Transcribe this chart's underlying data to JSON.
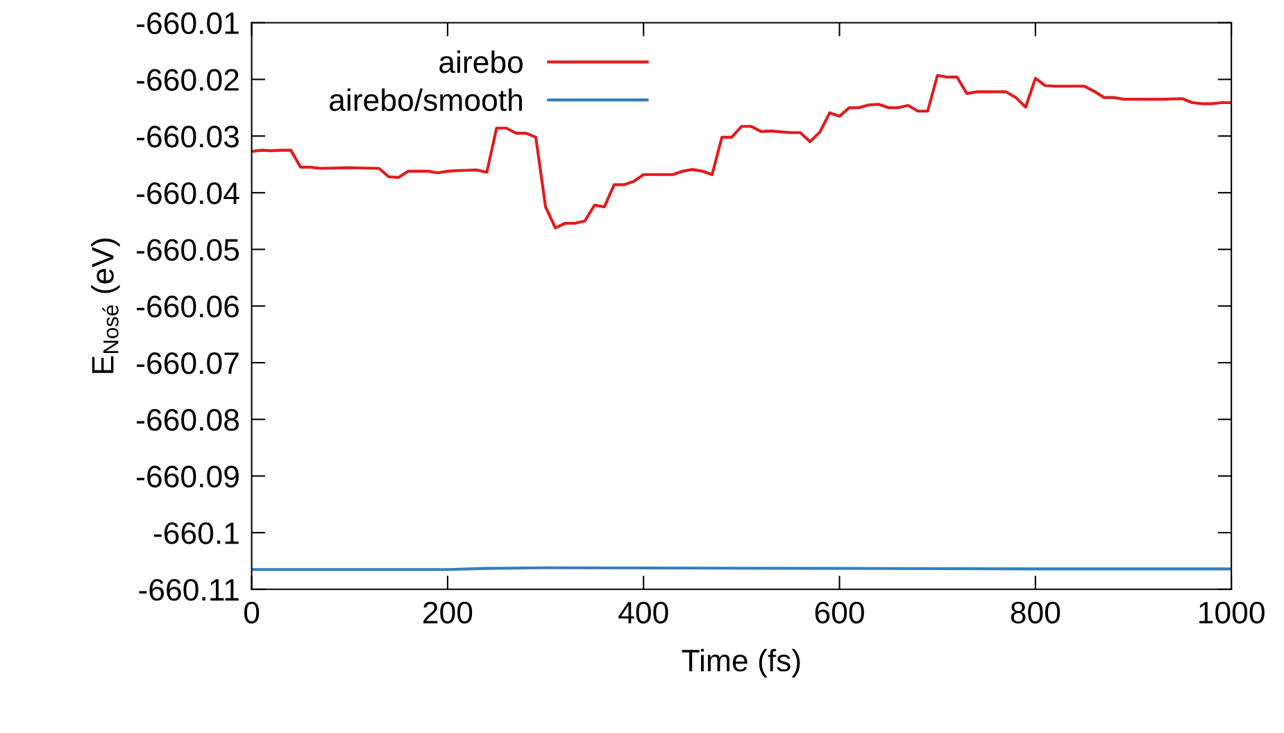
{
  "chart_data": {
    "type": "line",
    "xlabel": "Time (fs)",
    "ylabel": "E$_{Nosé}$ (eV)",
    "xlim": [
      0,
      1000
    ],
    "xticks": [
      0,
      200,
      400,
      600,
      800,
      1000
    ],
    "ylim": [
      -660.11,
      -660.01
    ],
    "yticks": [
      -660.11,
      -660.1,
      -660.09,
      -660.08,
      -660.07,
      -660.06,
      -660.05,
      -660.04,
      -660.03,
      -660.02,
      -660.01
    ],
    "grid": false,
    "legend": "top left",
    "marker": "none",
    "line_style": "solid",
    "series": [
      {
        "name": "airebo",
        "color": "#e41a1c",
        "x": [
          0,
          10,
          20,
          30,
          40,
          50,
          60,
          70,
          100,
          130,
          140,
          150,
          160,
          180,
          190,
          200,
          210,
          230,
          240,
          250,
          260,
          270,
          280,
          290,
          300,
          310,
          320,
          330,
          340,
          350,
          360,
          370,
          380,
          390,
          400,
          430,
          440,
          450,
          460,
          470,
          480,
          490,
          500,
          510,
          520,
          530,
          550,
          560,
          570,
          580,
          590,
          600,
          610,
          620,
          630,
          640,
          650,
          660,
          670,
          680,
          690,
          700,
          710,
          720,
          730,
          740,
          750,
          770,
          780,
          790,
          800,
          810,
          820,
          850,
          860,
          870,
          880,
          890,
          930,
          950,
          960,
          970,
          980,
          990,
          1000
        ],
        "values": [
          -660.0327,
          -660.0325,
          -660.0326,
          -660.0325,
          -660.0325,
          -660.0355,
          -660.0355,
          -660.0357,
          -660.0356,
          -660.0357,
          -660.0372,
          -660.0373,
          -660.0362,
          -660.0362,
          -660.0365,
          -660.0362,
          -660.0361,
          -660.036,
          -660.0364,
          -660.0286,
          -660.0286,
          -660.0295,
          -660.0295,
          -660.0302,
          -660.0425,
          -660.0462,
          -660.0454,
          -660.0454,
          -660.045,
          -660.0422,
          -660.0425,
          -660.0386,
          -660.0386,
          -660.038,
          -660.0368,
          -660.0368,
          -660.0362,
          -660.0359,
          -660.0362,
          -660.0368,
          -660.0302,
          -660.0302,
          -660.0283,
          -660.0283,
          -660.0292,
          -660.0291,
          -660.0294,
          -660.0294,
          -660.031,
          -660.0293,
          -660.0259,
          -660.0265,
          -660.025,
          -660.025,
          -660.0245,
          -660.0244,
          -660.025,
          -660.025,
          -660.0246,
          -660.0256,
          -660.0256,
          -660.0193,
          -660.0196,
          -660.0196,
          -660.0225,
          -660.0222,
          -660.0222,
          -660.0222,
          -660.0232,
          -660.0249,
          -660.0198,
          -660.0211,
          -660.0212,
          -660.0212,
          -660.0221,
          -660.0232,
          -660.0232,
          -660.0235,
          -660.0235,
          -660.0234,
          -660.0241,
          -660.0243,
          -660.0243,
          -660.0241,
          -660.0241
        ]
      },
      {
        "name": "airebo/smooth",
        "color": "#377eb8",
        "x": [
          0,
          200,
          240,
          300,
          600,
          800,
          1000
        ],
        "values": [
          -660.1065,
          -660.1065,
          -660.1063,
          -660.1062,
          -660.1063,
          -660.1064,
          -660.1064
        ]
      }
    ]
  }
}
